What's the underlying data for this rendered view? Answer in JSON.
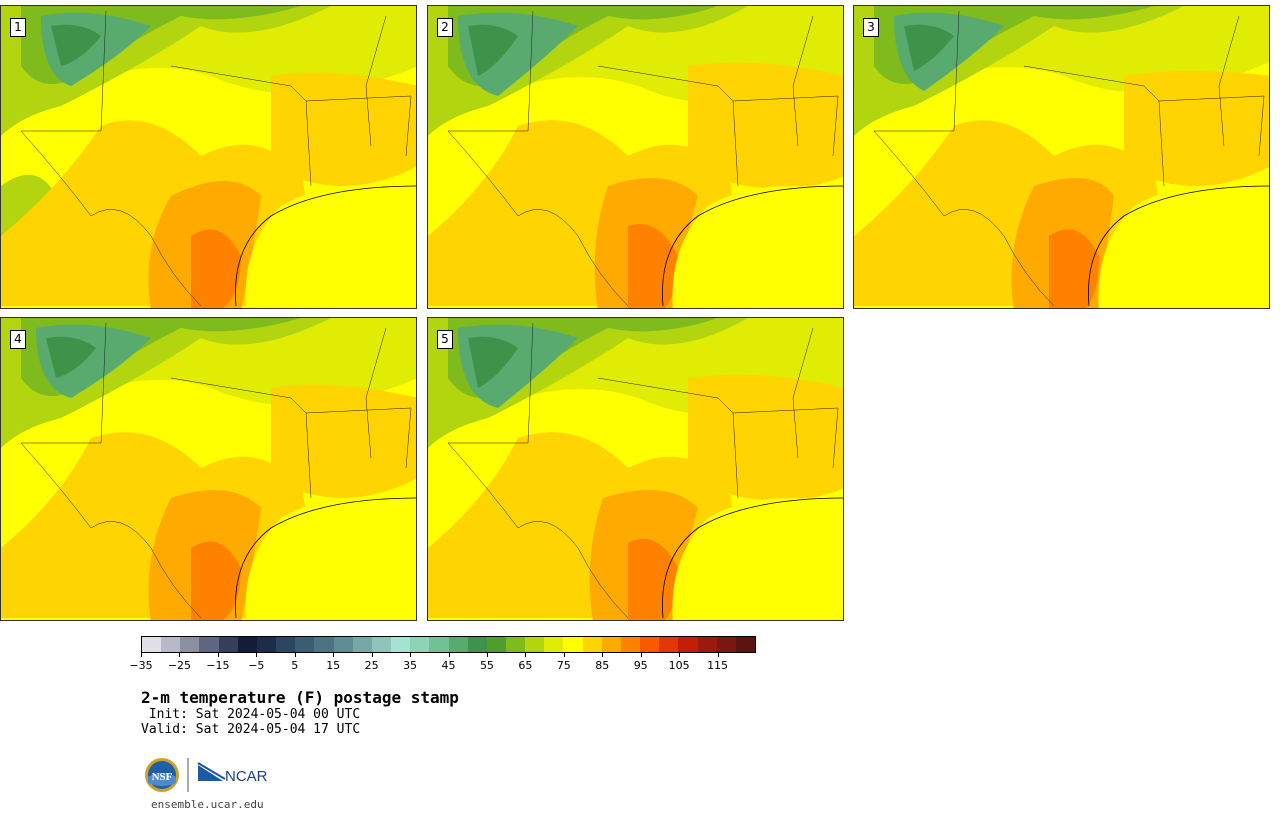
{
  "panels": [
    {
      "label": "1"
    },
    {
      "label": "2"
    },
    {
      "label": "3"
    },
    {
      "label": "4"
    },
    {
      "label": "5"
    }
  ],
  "colorbar": {
    "colors": [
      "#e0e0e6",
      "#b7b8c8",
      "#8c8fa3",
      "#5f6680",
      "#353e5b",
      "#141d37",
      "#1b2d4b",
      "#2a4661",
      "#3a5d72",
      "#4a7482",
      "#5e8e93",
      "#77a8a8",
      "#8fc4bb",
      "#a6e3d2",
      "#8dd4b6",
      "#71c192",
      "#58aa6e",
      "#3e9249",
      "#4f9d2c",
      "#7fbb1d",
      "#b2d50f",
      "#e1ec05",
      "#ffff00",
      "#ffd400",
      "#ffaa00",
      "#ff8100",
      "#fb5900",
      "#e23700",
      "#c21f06",
      "#9b1a10",
      "#7c1712",
      "#5d1410"
    ],
    "tick_labels": [
      "−35",
      "−25",
      "−15",
      "−5",
      "5",
      "15",
      "25",
      "35",
      "45",
      "55",
      "65",
      "75",
      "85",
      "95",
      "105",
      "115"
    ]
  },
  "title": "2-m temperature (F) postage stamp",
  "init_line": " Init: Sat 2024-05-04 00 UTC",
  "valid_line": "Valid: Sat 2024-05-04 17 UTC",
  "logos": {
    "left": "NSF",
    "right": "NCAR"
  },
  "url": "ensemble.ucar.edu"
}
